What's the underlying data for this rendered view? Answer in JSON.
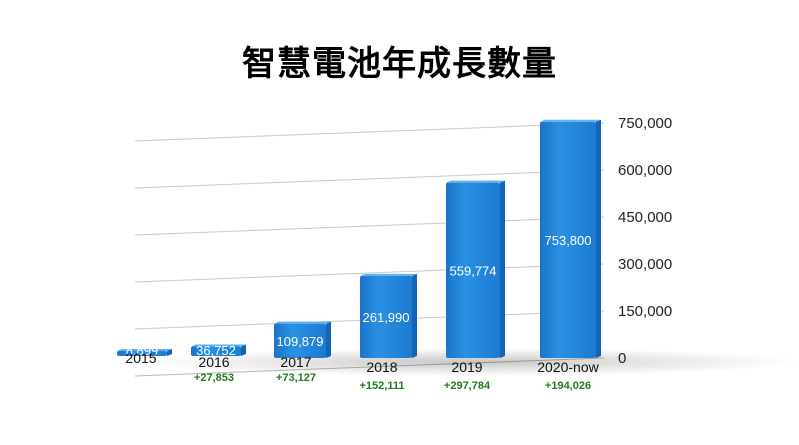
{
  "chart_data": {
    "type": "bar",
    "title": "智慧電池年成長數量",
    "categories": [
      "2015",
      "2016",
      "2017",
      "2018",
      "2019",
      "2020-now"
    ],
    "values": [
      8899,
      36752,
      109879,
      261990,
      559774,
      753800
    ],
    "value_labels": [
      "8,899",
      "36,752",
      "109,879",
      "261,990",
      "559,774",
      "753,800"
    ],
    "deltas": [
      "",
      "+27,853",
      "+73,127",
      "+152,111",
      "+297,784",
      "+194,026"
    ],
    "yticks": [
      0,
      150000,
      300000,
      450000,
      600000,
      750000
    ],
    "ytick_labels": [
      "0",
      "150,000",
      "300,000",
      "450,000",
      "600,000",
      "750,000"
    ],
    "ylim": [
      0,
      750000
    ],
    "xlabel": "",
    "ylabel": "",
    "axis_position": "right",
    "grid": true,
    "style": "3d",
    "colors": {
      "bar": "#2186dc",
      "bar_top": "#5db1f0",
      "bar_side": "#1565b5",
      "delta": "#1e7b1e",
      "grid": "#c8c8c8"
    }
  }
}
